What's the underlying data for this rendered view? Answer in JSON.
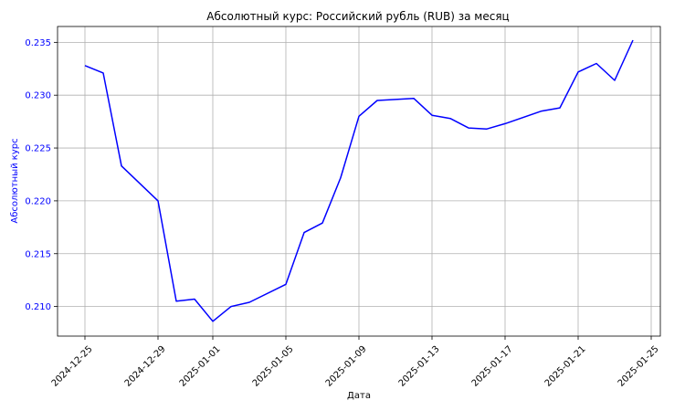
{
  "chart_data": {
    "type": "line",
    "title": "Абсолютный курс: Российский рубль (RUB) за месяц",
    "xlabel": "Дата",
    "ylabel": "Абсолютный курс",
    "x_ticks": [
      "2024-12-25",
      "2024-12-29",
      "2025-01-01",
      "2025-01-05",
      "2025-01-09",
      "2025-01-13",
      "2025-01-17",
      "2025-01-21",
      "2025-01-25"
    ],
    "y_ticks": [
      "0.210",
      "0.215",
      "0.220",
      "0.225",
      "0.230",
      "0.235"
    ],
    "xlim": [
      "2024-12-23T12:00",
      "2025-01-25T12:00"
    ],
    "ylim": [
      0.2072,
      0.2365
    ],
    "grid": true,
    "colors": {
      "line": "#0000ff",
      "ytick_text": "#0000ff",
      "axis": "#000000",
      "grid": "#b0b0b0"
    },
    "series": [
      {
        "x": [
          "2024-12-25",
          "2024-12-26",
          "2024-12-27",
          "2024-12-29",
          "2024-12-30",
          "2024-12-31",
          "2025-01-01",
          "2025-01-02",
          "2025-01-03",
          "2025-01-05",
          "2025-01-06",
          "2025-01-07",
          "2025-01-08",
          "2025-01-09",
          "2025-01-10",
          "2025-01-12",
          "2025-01-13",
          "2025-01-14",
          "2025-01-15",
          "2025-01-16",
          "2025-01-17",
          "2025-01-19",
          "2025-01-20",
          "2025-01-21",
          "2025-01-22",
          "2025-01-23",
          "2025-01-24"
        ],
        "y": [
          0.2328,
          0.2321,
          0.2233,
          0.22,
          0.2105,
          0.2107,
          0.2086,
          0.21,
          0.2104,
          0.2121,
          0.217,
          0.2179,
          0.2222,
          0.228,
          0.2295,
          0.2297,
          0.2281,
          0.2278,
          0.2269,
          0.2268,
          0.2273,
          0.2285,
          0.2288,
          0.2322,
          0.233,
          0.2314,
          0.2352
        ]
      }
    ]
  }
}
